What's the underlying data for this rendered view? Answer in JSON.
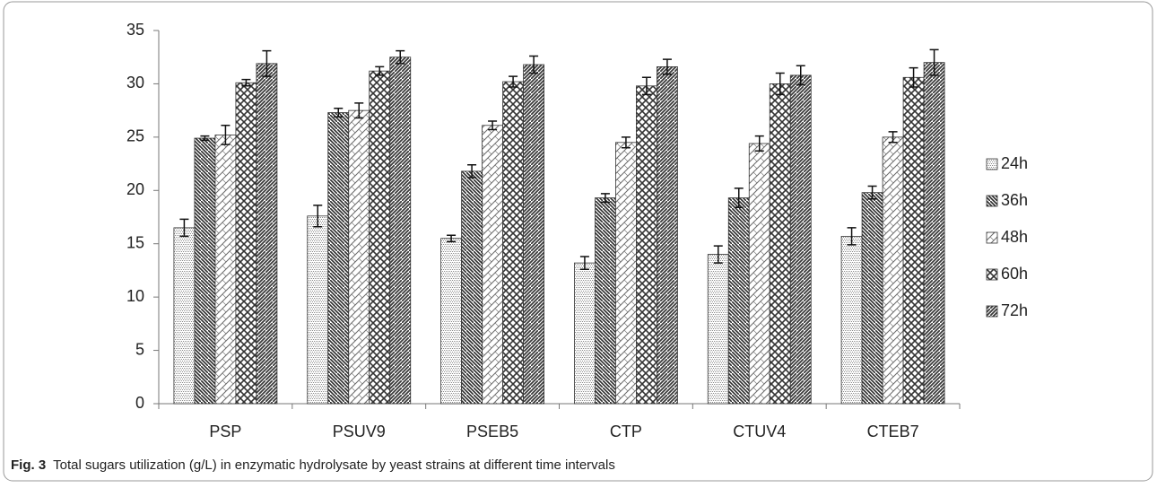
{
  "chart_data": {
    "type": "bar",
    "categories": [
      "PSP",
      "PSUV9",
      "PSEB5",
      "CTP",
      "CTUV4",
      "CTEB7"
    ],
    "series": [
      {
        "name": "24h",
        "color": "#8a8a8a",
        "values": [
          16.5,
          17.6,
          15.5,
          13.2,
          14.0,
          15.7
        ],
        "errors": [
          0.8,
          1.0,
          0.3,
          0.6,
          0.8,
          0.8
        ]
      },
      {
        "name": "36h",
        "color": "#2a2a2a",
        "values": [
          24.9,
          27.3,
          21.8,
          19.3,
          19.3,
          19.8
        ],
        "errors": [
          0.2,
          0.4,
          0.6,
          0.4,
          0.9,
          0.6
        ]
      },
      {
        "name": "48h",
        "color": "#6a6a6a",
        "values": [
          25.2,
          27.5,
          26.1,
          24.5,
          24.4,
          25.0
        ],
        "errors": [
          0.9,
          0.7,
          0.4,
          0.5,
          0.7,
          0.5
        ]
      },
      {
        "name": "60h",
        "color": "#333333",
        "values": [
          30.1,
          31.2,
          30.2,
          29.8,
          30.0,
          30.6
        ],
        "errors": [
          0.3,
          0.4,
          0.5,
          0.8,
          1.0,
          0.9
        ]
      },
      {
        "name": "72h",
        "color": "#3a3a3a",
        "values": [
          31.9,
          32.5,
          31.8,
          31.6,
          30.8,
          32.0
        ],
        "errors": [
          1.2,
          0.6,
          0.8,
          0.7,
          0.9,
          1.2
        ]
      }
    ],
    "ylim": [
      0,
      35
    ],
    "yticks": [
      0,
      5,
      10,
      15,
      20,
      25,
      30,
      35
    ],
    "grid": false,
    "legend": "right",
    "caption_label": "Fig. 3",
    "caption": "Total sugars utilization (g/L) in enzymatic hydrolysate by yeast strains at different time intervals"
  }
}
